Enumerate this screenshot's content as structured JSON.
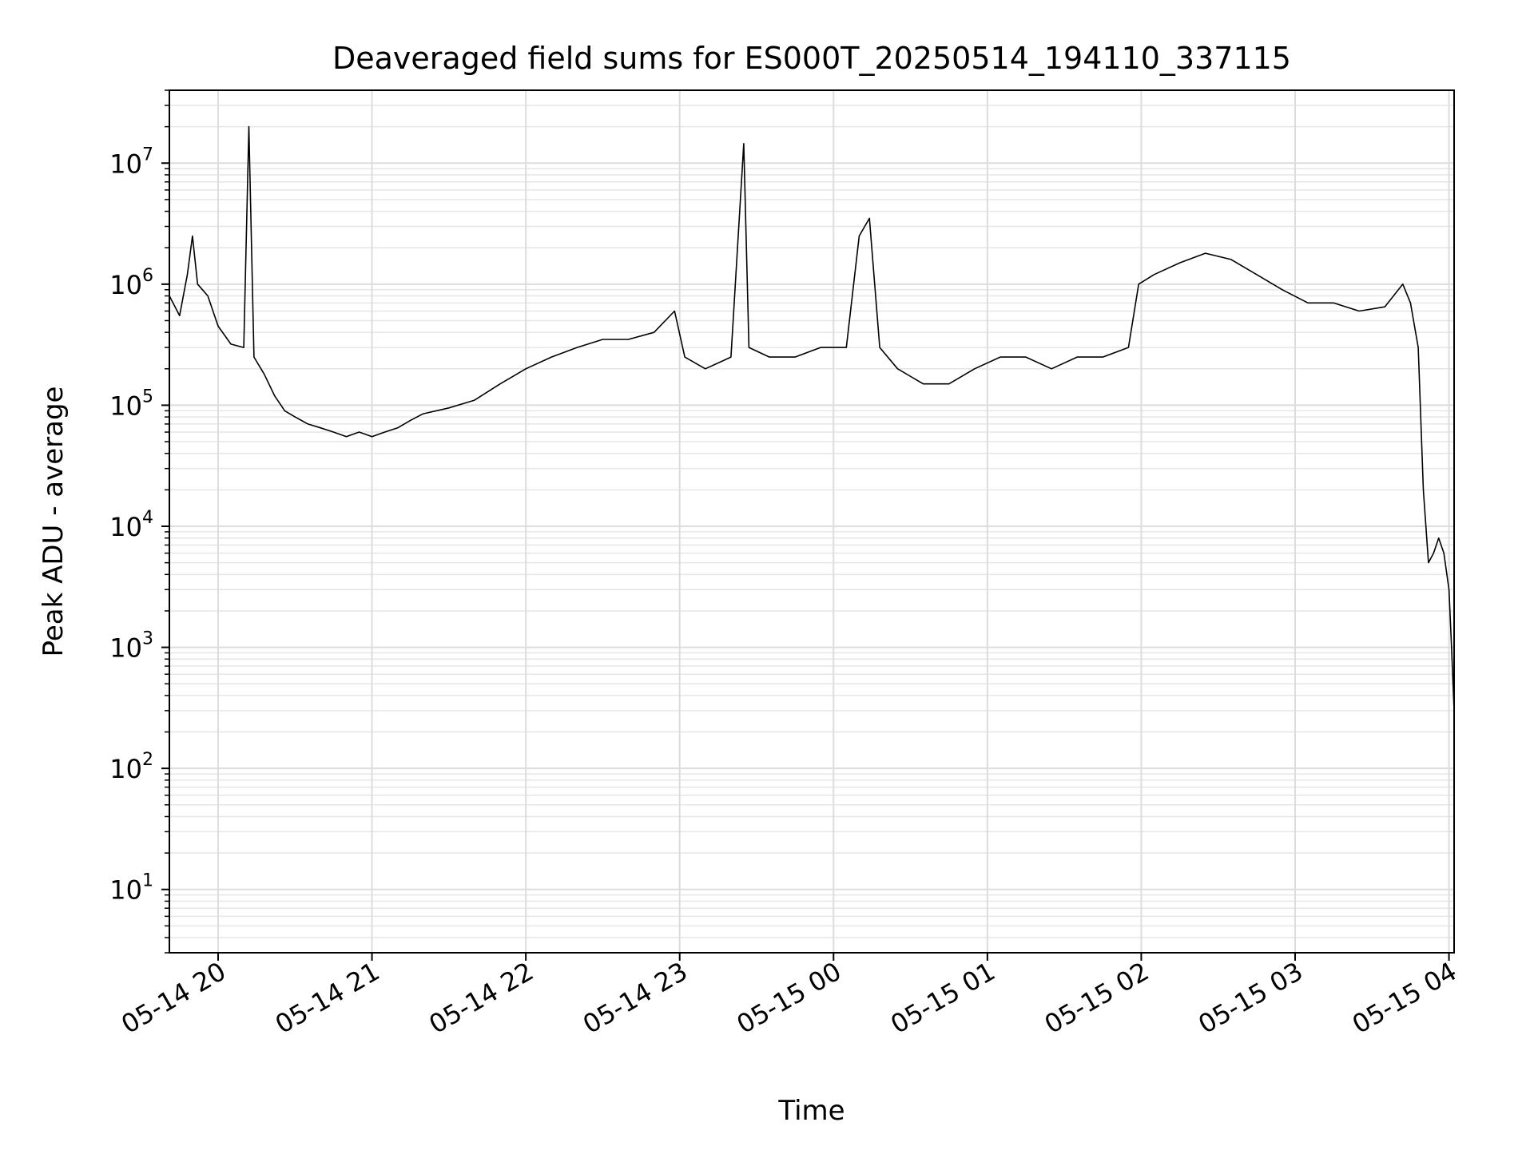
{
  "chart_data": {
    "type": "line",
    "title": "Deaveraged field sums for ES000T_20250514_194110_337115",
    "xlabel": "Time",
    "ylabel": "Peak ADU - average",
    "yscale": "log",
    "ylim": [
      3,
      40000000
    ],
    "xlim": [
      "2025-05-14 19:41",
      "2025-05-15 04:02"
    ],
    "grid": true,
    "x_ticks": [
      {
        "t": "2025-05-14 20:00",
        "label": "05-14 20"
      },
      {
        "t": "2025-05-14 21:00",
        "label": "05-14 21"
      },
      {
        "t": "2025-05-14 22:00",
        "label": "05-14 22"
      },
      {
        "t": "2025-05-14 23:00",
        "label": "05-14 23"
      },
      {
        "t": "2025-05-15 00:00",
        "label": "05-15 00"
      },
      {
        "t": "2025-05-15 01:00",
        "label": "05-15 01"
      },
      {
        "t": "2025-05-15 02:00",
        "label": "05-15 02"
      },
      {
        "t": "2025-05-15 03:00",
        "label": "05-15 03"
      },
      {
        "t": "2025-05-15 04:00",
        "label": "05-15 04"
      }
    ],
    "y_ticks": [
      {
        "value": 10,
        "base": "10",
        "exp": "1"
      },
      {
        "value": 100,
        "base": "10",
        "exp": "2"
      },
      {
        "value": 1000,
        "base": "10",
        "exp": "3"
      },
      {
        "value": 10000,
        "base": "10",
        "exp": "4"
      },
      {
        "value": 100000,
        "base": "10",
        "exp": "5"
      },
      {
        "value": 1000000,
        "base": "10",
        "exp": "6"
      },
      {
        "value": 10000000,
        "base": "10",
        "exp": "7"
      }
    ],
    "series": [
      {
        "color": "#000000",
        "points": [
          [
            "2025-05-14 19:41",
            800000
          ],
          [
            "2025-05-14 19:45",
            550000
          ],
          [
            "2025-05-14 19:48",
            1200000
          ],
          [
            "2025-05-14 19:50",
            2500000
          ],
          [
            "2025-05-14 19:52",
            1000000
          ],
          [
            "2025-05-14 19:56",
            800000
          ],
          [
            "2025-05-14 20:00",
            450000
          ],
          [
            "2025-05-14 20:05",
            320000
          ],
          [
            "2025-05-14 20:10",
            300000
          ],
          [
            "2025-05-14 20:12",
            20000000
          ],
          [
            "2025-05-14 20:14",
            250000
          ],
          [
            "2025-05-14 20:18",
            180000
          ],
          [
            "2025-05-14 20:22",
            120000
          ],
          [
            "2025-05-14 20:26",
            90000
          ],
          [
            "2025-05-14 20:30",
            80000
          ],
          [
            "2025-05-14 20:35",
            70000
          ],
          [
            "2025-05-14 20:40",
            65000
          ],
          [
            "2025-05-14 20:45",
            60000
          ],
          [
            "2025-05-14 20:50",
            55000
          ],
          [
            "2025-05-14 20:55",
            60000
          ],
          [
            "2025-05-14 21:00",
            55000
          ],
          [
            "2025-05-14 21:05",
            60000
          ],
          [
            "2025-05-14 21:10",
            65000
          ],
          [
            "2025-05-14 21:15",
            75000
          ],
          [
            "2025-05-14 21:20",
            85000
          ],
          [
            "2025-05-14 21:30",
            95000
          ],
          [
            "2025-05-14 21:40",
            110000
          ],
          [
            "2025-05-14 21:50",
            150000
          ],
          [
            "2025-05-14 22:00",
            200000
          ],
          [
            "2025-05-14 22:10",
            250000
          ],
          [
            "2025-05-14 22:20",
            300000
          ],
          [
            "2025-05-14 22:30",
            350000
          ],
          [
            "2025-05-14 22:40",
            350000
          ],
          [
            "2025-05-14 22:50",
            400000
          ],
          [
            "2025-05-14 22:58",
            600000
          ],
          [
            "2025-05-14 23:02",
            250000
          ],
          [
            "2025-05-14 23:10",
            200000
          ],
          [
            "2025-05-14 23:20",
            250000
          ],
          [
            "2025-05-14 23:25",
            14500000
          ],
          [
            "2025-05-14 23:27",
            300000
          ],
          [
            "2025-05-14 23:35",
            250000
          ],
          [
            "2025-05-14 23:45",
            250000
          ],
          [
            "2025-05-14 23:55",
            300000
          ],
          [
            "2025-05-15 00:05",
            300000
          ],
          [
            "2025-05-15 00:10",
            2500000
          ],
          [
            "2025-05-15 00:14",
            3500000
          ],
          [
            "2025-05-15 00:18",
            300000
          ],
          [
            "2025-05-15 00:25",
            200000
          ],
          [
            "2025-05-15 00:35",
            150000
          ],
          [
            "2025-05-15 00:45",
            150000
          ],
          [
            "2025-05-15 00:55",
            200000
          ],
          [
            "2025-05-15 01:05",
            250000
          ],
          [
            "2025-05-15 01:15",
            250000
          ],
          [
            "2025-05-15 01:25",
            200000
          ],
          [
            "2025-05-15 01:35",
            250000
          ],
          [
            "2025-05-15 01:45",
            250000
          ],
          [
            "2025-05-15 01:55",
            300000
          ],
          [
            "2025-05-15 01:59",
            1000000
          ],
          [
            "2025-05-15 02:05",
            1200000
          ],
          [
            "2025-05-15 02:15",
            1500000
          ],
          [
            "2025-05-15 02:25",
            1800000
          ],
          [
            "2025-05-15 02:35",
            1600000
          ],
          [
            "2025-05-15 02:45",
            1200000
          ],
          [
            "2025-05-15 02:55",
            900000
          ],
          [
            "2025-05-15 03:05",
            700000
          ],
          [
            "2025-05-15 03:15",
            700000
          ],
          [
            "2025-05-15 03:25",
            600000
          ],
          [
            "2025-05-15 03:35",
            650000
          ],
          [
            "2025-05-15 03:42",
            1000000
          ],
          [
            "2025-05-15 03:45",
            700000
          ],
          [
            "2025-05-15 03:48",
            300000
          ],
          [
            "2025-05-15 03:50",
            20000
          ],
          [
            "2025-05-15 03:52",
            5000
          ],
          [
            "2025-05-15 03:54",
            6000
          ],
          [
            "2025-05-15 03:56",
            8000
          ],
          [
            "2025-05-15 03:58",
            6000
          ],
          [
            "2025-05-15 04:00",
            3000
          ],
          [
            "2025-05-15 04:01",
            1000
          ],
          [
            "2025-05-15 04:02",
            300
          ]
        ]
      }
    ]
  }
}
